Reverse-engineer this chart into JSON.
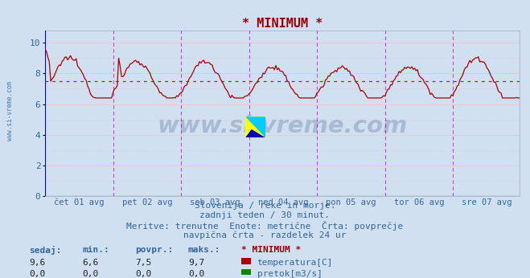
{
  "title": "* MINIMUM *",
  "title_color": "#990000",
  "bg_color": "#d0e0f0",
  "plot_bg_color": "#d0e0f0",
  "grid_color": "#ffbbbb",
  "temp_color": "#aa0000",
  "flow_color": "#008800",
  "avg_line_color": "#cc0000",
  "avg_value": 7.5,
  "ylim": [
    0,
    10.8
  ],
  "yticks": [
    0,
    2,
    4,
    6,
    8,
    10
  ],
  "x_labels": [
    "čet 01 avg",
    "pet 02 avg",
    "sob 03 avg",
    "ned 04 avg",
    "pon 05 avg",
    "tor 06 avg",
    "sre 07 avg"
  ],
  "vline_color": "#cc44cc",
  "vline_start_color": "#0000cc",
  "subtitle_lines": [
    "Slovenija / reke in morje.",
    "zadnji teden / 30 minut.",
    "Meritve: trenutne  Enote: metrične  Črta: povprečje",
    "navpična črta - razdelek 24 ur"
  ],
  "subtitle_color": "#336699",
  "subtitle_fontsize": 8,
  "table_header_labels": [
    "sedaj:",
    "min.:",
    "povpr.:",
    "maks.:",
    "* MINIMUM *"
  ],
  "table_col4_color": "#990000",
  "table_rows": [
    [
      "9,6",
      "6,6",
      "7,5",
      "9,7",
      "temperatura[C]"
    ],
    [
      "0,0",
      "0,0",
      "0,0",
      "0,0",
      "pretok[m3/s]"
    ]
  ],
  "table_color": "#336699",
  "watermark_text": "www.si-vreme.com",
  "watermark_color": "#1a3a6a",
  "watermark_alpha": 0.22,
  "left_label": "www.si-vreme.com",
  "left_label_color": "#336699",
  "n_points": 336,
  "days": 7,
  "points_per_day": 48,
  "temp_avg": 7.5
}
